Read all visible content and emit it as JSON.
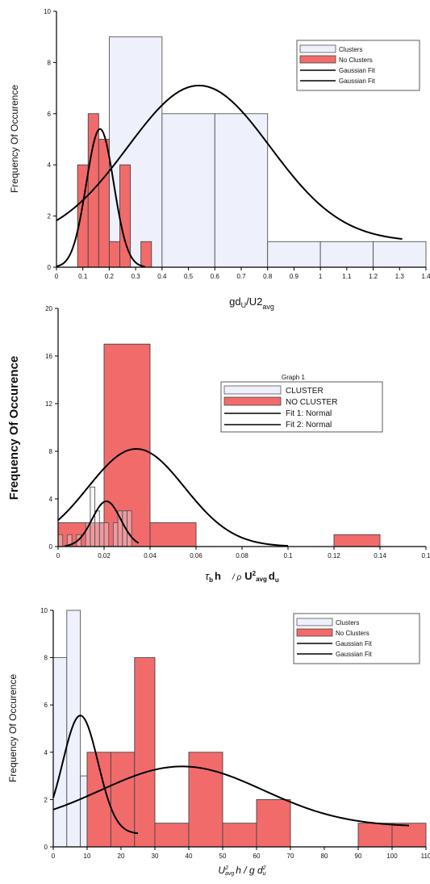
{
  "chart_data": [
    {
      "type": "bar",
      "xlabel": "gd_U/U2_avg",
      "xlabel_main": "gd",
      "xlabel_sub1": "U",
      "xlabel_mid": "/U2",
      "xlabel_sub2": "avg",
      "ylabel": "Frequency Of Occurence",
      "xlim": [
        0,
        1.4
      ],
      "ylim": [
        0,
        10
      ],
      "xticks": [
        "0",
        "0.1",
        "0.2",
        "0.3",
        "0.4",
        "0.5",
        "0.6",
        "0.7",
        "0.8",
        "0.9",
        "1",
        "1.1",
        "1.2",
        "1.3",
        "1.4"
      ],
      "yticks": [
        "0",
        "2",
        "4",
        "6",
        "8",
        "10"
      ],
      "legend": {
        "placement": "top-right",
        "entries": [
          "Clusters",
          "No Clusters",
          "Gaussian Fit",
          "Gaussian Fit"
        ]
      },
      "series": [
        {
          "name": "Clusters",
          "kind": "hist",
          "color": "#eef0fb",
          "stroke": "#555555",
          "bins": [
            {
              "x0": 0.2,
              "x1": 0.4,
              "value": 9
            },
            {
              "x0": 0.4,
              "x1": 0.6,
              "value": 6
            },
            {
              "x0": 0.6,
              "x1": 0.8,
              "value": 6
            },
            {
              "x0": 0.8,
              "x1": 1.0,
              "value": 1
            },
            {
              "x0": 1.0,
              "x1": 1.2,
              "value": 1
            },
            {
              "x0": 1.2,
              "x1": 1.4,
              "value": 1
            }
          ]
        },
        {
          "name": "No Clusters",
          "kind": "hist",
          "color": "#f26b6b",
          "stroke": "#444444",
          "bins": [
            {
              "x0": 0.08,
              "x1": 0.12,
              "value": 4
            },
            {
              "x0": 0.12,
              "x1": 0.16,
              "value": 6
            },
            {
              "x0": 0.16,
              "x1": 0.2,
              "value": 5
            },
            {
              "x0": 0.2,
              "x1": 0.24,
              "value": 1
            },
            {
              "x0": 0.24,
              "x1": 0.28,
              "value": 4
            },
            {
              "x0": 0.32,
              "x1": 0.36,
              "value": 1
            }
          ]
        },
        {
          "name": "Gaussian Fit",
          "kind": "fit",
          "amplitude": 6.1,
          "baseline": 1,
          "mean": 0.54,
          "sd": 0.27,
          "range": [
            0,
            1.31
          ]
        },
        {
          "name": "Gaussian Fit",
          "kind": "fit",
          "amplitude": 5.4,
          "baseline": 0,
          "mean": 0.165,
          "sd": 0.052,
          "range": [
            0,
            0.335
          ]
        }
      ]
    },
    {
      "type": "bar",
      "xlabel": "τ_b h / ρ U²_avg d_u",
      "xlabel_p1": "τ",
      "xlabel_p1sub": "b",
      "xlabel_p2": "h",
      "xlabel_p3": "/ ρ",
      "xlabel_p4": "U",
      "xlabel_p4sup": "2",
      "xlabel_p4sub": "avg",
      "xlabel_p5": "d",
      "xlabel_p5sub": "u",
      "ylabel": "Frequency Of Occurence",
      "xlim": [
        0,
        0.16
      ],
      "ylim": [
        0,
        20
      ],
      "xticks": [
        "0",
        "0.02",
        "0.04",
        "0.06",
        "0.08",
        "0.1",
        "0.12",
        "0.14",
        "0.1"
      ],
      "yticks": [
        "0",
        "4",
        "8",
        "12",
        "16",
        "20"
      ],
      "legend": {
        "placement": "right",
        "title": "Graph 1",
        "entries": [
          "CLUSTER",
          "NO CLUSTER",
          "Fit 1: Normal",
          "Fit 2: Normal"
        ]
      },
      "series": [
        {
          "name": "NO CLUSTER",
          "kind": "hist",
          "color": "#f26b6b",
          "stroke": "#444444",
          "bins": [
            {
              "x0": 0.0,
              "x1": 0.02,
              "value": 2
            },
            {
              "x0": 0.02,
              "x1": 0.04,
              "value": 17
            },
            {
              "x0": 0.04,
              "x1": 0.06,
              "value": 2
            },
            {
              "x0": 0.12,
              "x1": 0.14,
              "value": 1
            }
          ]
        },
        {
          "name": "CLUSTER",
          "kind": "hist",
          "color": "#eef0fb",
          "stroke": "#555555",
          "fill_opacity": 0.35,
          "bins": [
            {
              "x0": 0.0,
              "x1": 0.002,
              "value": 1
            },
            {
              "x0": 0.004,
              "x1": 0.006,
              "value": 1
            },
            {
              "x0": 0.008,
              "x1": 0.01,
              "value": 1
            },
            {
              "x0": 0.012,
              "x1": 0.014,
              "value": 2
            },
            {
              "x0": 0.014,
              "x1": 0.016,
              "value": 5
            },
            {
              "x0": 0.016,
              "x1": 0.018,
              "value": 3
            },
            {
              "x0": 0.018,
              "x1": 0.02,
              "value": 2
            },
            {
              "x0": 0.02,
              "x1": 0.022,
              "value": 2
            },
            {
              "x0": 0.024,
              "x1": 0.026,
              "value": 2
            },
            {
              "x0": 0.026,
              "x1": 0.028,
              "value": 3
            },
            {
              "x0": 0.028,
              "x1": 0.03,
              "value": 3
            },
            {
              "x0": 0.03,
              "x1": 0.032,
              "value": 3
            }
          ]
        },
        {
          "name": "Fit 1: Normal",
          "kind": "fit",
          "amplitude": 8.2,
          "baseline": 0,
          "mean": 0.034,
          "sd": 0.021,
          "range": [
            0,
            0.1
          ]
        },
        {
          "name": "Fit 2: Normal",
          "kind": "fit",
          "amplitude": 3.8,
          "baseline": 0,
          "mean": 0.021,
          "sd": 0.0062,
          "range": [
            0.003,
            0.035
          ]
        }
      ]
    },
    {
      "type": "bar",
      "xlabel": "U²_avg h / g d²_u",
      "xlabel_p1": "U",
      "xlabel_p1sup": "2",
      "xlabel_p1sub": "avg",
      "xlabel_p2": "h / g d",
      "xlabel_p2sup": "2",
      "xlabel_p2sub": "u",
      "ylabel": "Frequency Of Occurence",
      "xlim": [
        0,
        110
      ],
      "ylim": [
        0,
        10
      ],
      "xticks": [
        "0",
        "10",
        "20",
        "30",
        "40",
        "50",
        "60",
        "70",
        "80",
        "90",
        "100",
        "110"
      ],
      "yticks": [
        "0",
        "2",
        "4",
        "6",
        "8",
        "10"
      ],
      "legend": {
        "placement": "top-right",
        "entries": [
          "Clusters",
          "No Clusters",
          "Gaussian Fit",
          "Gaussian Fit"
        ]
      },
      "series": [
        {
          "name": "Clusters",
          "kind": "hist",
          "color": "#eef0fb",
          "stroke": "#555555",
          "bins": [
            {
              "x0": 0,
              "x1": 4,
              "value": 8
            },
            {
              "x0": 4,
              "x1": 8,
              "value": 10
            },
            {
              "x0": 8,
              "x1": 10,
              "value": 3
            }
          ]
        },
        {
          "name": "No Clusters",
          "kind": "hist",
          "color": "#f26b6b",
          "stroke": "#444444",
          "bins": [
            {
              "x0": 10,
              "x1": 17,
              "value": 4
            },
            {
              "x0": 17,
              "x1": 24,
              "value": 4
            },
            {
              "x0": 24,
              "x1": 30,
              "value": 8
            },
            {
              "x0": 30,
              "x1": 40,
              "value": 1
            },
            {
              "x0": 40,
              "x1": 50,
              "value": 4
            },
            {
              "x0": 50,
              "x1": 60,
              "value": 1
            },
            {
              "x0": 60,
              "x1": 70,
              "value": 2
            },
            {
              "x0": 90,
              "x1": 100,
              "value": 1
            },
            {
              "x0": 100,
              "x1": 110,
              "value": 1
            }
          ]
        },
        {
          "name": "Gaussian Fit",
          "kind": "fit",
          "amplitude": 2.55,
          "baseline": 0.85,
          "mean": 38,
          "sd": 24,
          "range": [
            0,
            105
          ]
        },
        {
          "name": "Gaussian Fit",
          "kind": "fit",
          "amplitude": 5.0,
          "baseline": 0.55,
          "mean": 8,
          "sd": 5.2,
          "range": [
            0,
            25
          ]
        }
      ]
    }
  ]
}
